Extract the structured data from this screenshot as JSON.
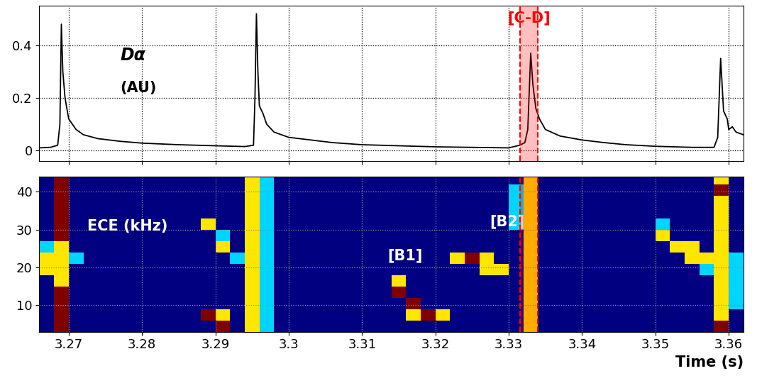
{
  "chart_data": [
    {
      "type": "line",
      "x": [
        3.266,
        3.2675,
        3.2685,
        3.2688,
        3.269,
        3.2692,
        3.2695,
        3.27,
        3.271,
        3.272,
        3.274,
        3.277,
        3.28,
        3.285,
        3.29,
        3.294,
        3.2952,
        3.2954,
        3.2956,
        3.2958,
        3.296,
        3.2965,
        3.297,
        3.298,
        3.3,
        3.303,
        3.306,
        3.31,
        3.315,
        3.32,
        3.325,
        3.33,
        3.3315,
        3.3322,
        3.3326,
        3.333,
        3.3333,
        3.3337,
        3.3342,
        3.335,
        3.337,
        3.34,
        3.343,
        3.346,
        3.35,
        3.355,
        3.358,
        3.3585,
        3.3589,
        3.3593,
        3.3598,
        3.36,
        3.3605,
        3.361,
        3.362
      ],
      "values": [
        0.01,
        0.012,
        0.02,
        0.1,
        0.48,
        0.3,
        0.2,
        0.12,
        0.08,
        0.06,
        0.045,
        0.035,
        0.028,
        0.022,
        0.018,
        0.015,
        0.02,
        0.2,
        0.52,
        0.3,
        0.17,
        0.14,
        0.1,
        0.07,
        0.05,
        0.04,
        0.03,
        0.022,
        0.018,
        0.014,
        0.012,
        0.01,
        0.02,
        0.03,
        0.08,
        0.37,
        0.25,
        0.16,
        0.12,
        0.08,
        0.055,
        0.04,
        0.03,
        0.022,
        0.016,
        0.012,
        0.012,
        0.05,
        0.35,
        0.15,
        0.12,
        0.08,
        0.09,
        0.07,
        0.06
      ],
      "color": "black",
      "xlim": [
        3.266,
        3.362
      ],
      "xticks": [
        3.27,
        3.28,
        3.29,
        3.3,
        3.31,
        3.32,
        3.33,
        3.34,
        3.35,
        3.36
      ],
      "ylim": [
        -0.04,
        0.55
      ],
      "yticks": [
        0,
        0.2,
        0.4
      ],
      "tick_labels": "y",
      "grid": true,
      "annotations": [
        "Dα",
        "(AU)"
      ]
    },
    {
      "type": "heatmap",
      "x_edges": [
        3.266,
        3.268,
        3.27,
        3.272,
        3.274,
        3.276,
        3.278,
        3.28,
        3.282,
        3.284,
        3.286,
        3.288,
        3.29,
        3.292,
        3.294,
        3.296,
        3.298,
        3.3,
        3.302,
        3.304,
        3.306,
        3.308,
        3.31,
        3.312,
        3.314,
        3.316,
        3.318,
        3.32,
        3.322,
        3.324,
        3.326,
        3.328,
        3.33,
        3.332,
        3.334,
        3.336,
        3.338,
        3.34,
        3.342,
        3.344,
        3.346,
        3.348,
        3.35,
        3.352,
        3.354,
        3.356,
        3.358,
        3.36,
        3.362
      ],
      "y_edges": [
        3,
        6,
        9,
        12,
        15,
        18,
        21,
        24,
        27,
        30,
        33,
        36,
        39,
        42,
        45
      ],
      "cells": [
        [
          0,
          3,
          0,
          0,
          0,
          0,
          0,
          0,
          0,
          0,
          0,
          0,
          3,
          0,
          2,
          1,
          0,
          0,
          0,
          0,
          0,
          0,
          0,
          0,
          0,
          0,
          0,
          0,
          0,
          0,
          0,
          0,
          0,
          2,
          0,
          0,
          0,
          0,
          0,
          0,
          0,
          0,
          0,
          0,
          0,
          0,
          3,
          0
        ],
        [
          0,
          3,
          0,
          0,
          0,
          0,
          0,
          0,
          0,
          0,
          0,
          3,
          2,
          0,
          2,
          1,
          0,
          0,
          0,
          0,
          0,
          0,
          0,
          0,
          0,
          2,
          3,
          2,
          0,
          0,
          0,
          0,
          0,
          2,
          0,
          0,
          0,
          0,
          0,
          0,
          0,
          0,
          0,
          0,
          0,
          0,
          2,
          0
        ],
        [
          0,
          3,
          0,
          0,
          0,
          0,
          0,
          0,
          0,
          0,
          0,
          0,
          0,
          0,
          2,
          1,
          0,
          0,
          0,
          0,
          0,
          0,
          0,
          0,
          0,
          3,
          0,
          0,
          0,
          0,
          0,
          0,
          0,
          2,
          0,
          0,
          0,
          0,
          0,
          0,
          0,
          0,
          0,
          0,
          0,
          0,
          2,
          1
        ],
        [
          0,
          3,
          0,
          0,
          0,
          0,
          0,
          0,
          0,
          0,
          0,
          0,
          0,
          0,
          2,
          1,
          0,
          0,
          0,
          0,
          0,
          0,
          0,
          0,
          3,
          0,
          0,
          0,
          0,
          0,
          0,
          0,
          0,
          2,
          0,
          0,
          0,
          0,
          0,
          0,
          0,
          0,
          0,
          0,
          0,
          0,
          2,
          1
        ],
        [
          0,
          2,
          0,
          0,
          0,
          0,
          0,
          0,
          0,
          0,
          0,
          0,
          0,
          0,
          2,
          1,
          0,
          0,
          0,
          0,
          0,
          0,
          0,
          0,
          2,
          0,
          0,
          0,
          0,
          0,
          0,
          0,
          0,
          2,
          0,
          0,
          0,
          0,
          0,
          0,
          0,
          0,
          0,
          0,
          0,
          0,
          2,
          1
        ],
        [
          2,
          2,
          0,
          0,
          0,
          0,
          0,
          0,
          0,
          0,
          0,
          0,
          0,
          0,
          2,
          1,
          0,
          0,
          0,
          0,
          0,
          0,
          0,
          0,
          0,
          0,
          0,
          0,
          0,
          0,
          2,
          2,
          0,
          2,
          0,
          0,
          0,
          0,
          0,
          0,
          0,
          0,
          0,
          0,
          0,
          1,
          2,
          1
        ],
        [
          2,
          2,
          1,
          0,
          0,
          0,
          0,
          0,
          0,
          0,
          0,
          0,
          0,
          1,
          2,
          1,
          0,
          0,
          0,
          0,
          0,
          0,
          0,
          0,
          0,
          0,
          0,
          0,
          2,
          3,
          2,
          0,
          0,
          2,
          0,
          0,
          0,
          0,
          0,
          0,
          0,
          0,
          0,
          0,
          2,
          2,
          2,
          1
        ],
        [
          1,
          2,
          0,
          0,
          0,
          0,
          0,
          0,
          0,
          0,
          0,
          0,
          2,
          0,
          2,
          1,
          0,
          0,
          0,
          0,
          0,
          0,
          0,
          0,
          0,
          0,
          0,
          0,
          0,
          0,
          0,
          0,
          0,
          2,
          0,
          0,
          0,
          0,
          0,
          0,
          0,
          0,
          0,
          2,
          2,
          0,
          2,
          0
        ],
        [
          0,
          3,
          0,
          0,
          0,
          0,
          0,
          0,
          0,
          0,
          0,
          0,
          1,
          0,
          2,
          1,
          0,
          0,
          0,
          0,
          0,
          0,
          0,
          0,
          0,
          0,
          0,
          0,
          0,
          0,
          0,
          0,
          0,
          2,
          0,
          0,
          0,
          0,
          0,
          0,
          0,
          0,
          2,
          0,
          0,
          0,
          2,
          0
        ],
        [
          0,
          3,
          0,
          0,
          0,
          0,
          0,
          0,
          0,
          0,
          0,
          2,
          0,
          0,
          2,
          1,
          0,
          0,
          0,
          0,
          0,
          0,
          0,
          0,
          0,
          0,
          0,
          0,
          0,
          0,
          0,
          0,
          1,
          2,
          0,
          0,
          0,
          0,
          0,
          0,
          0,
          0,
          1,
          0,
          0,
          0,
          2,
          0
        ],
        [
          0,
          3,
          0,
          0,
          0,
          0,
          0,
          0,
          0,
          0,
          0,
          0,
          0,
          0,
          2,
          1,
          0,
          0,
          0,
          0,
          0,
          0,
          0,
          0,
          0,
          0,
          0,
          0,
          0,
          0,
          0,
          0,
          1,
          2,
          0,
          0,
          0,
          0,
          0,
          0,
          0,
          0,
          0,
          0,
          0,
          0,
          2,
          0
        ],
        [
          0,
          3,
          0,
          0,
          0,
          0,
          0,
          0,
          0,
          0,
          0,
          0,
          0,
          0,
          2,
          1,
          0,
          0,
          0,
          0,
          0,
          0,
          0,
          0,
          0,
          0,
          0,
          0,
          0,
          0,
          0,
          0,
          1,
          2,
          0,
          0,
          0,
          0,
          0,
          0,
          0,
          0,
          0,
          0,
          0,
          0,
          2,
          0
        ],
        [
          0,
          3,
          0,
          0,
          0,
          0,
          0,
          0,
          0,
          0,
          0,
          0,
          0,
          0,
          2,
          1,
          0,
          0,
          0,
          0,
          0,
          0,
          0,
          0,
          0,
          0,
          0,
          0,
          0,
          0,
          0,
          0,
          1,
          2,
          0,
          0,
          0,
          0,
          0,
          0,
          0,
          0,
          0,
          0,
          0,
          0,
          3,
          0
        ],
        [
          0,
          3,
          0,
          0,
          0,
          0,
          0,
          0,
          0,
          0,
          0,
          0,
          0,
          0,
          2,
          1,
          0,
          0,
          0,
          0,
          0,
          0,
          0,
          0,
          0,
          0,
          0,
          0,
          0,
          0,
          0,
          0,
          0,
          2,
          0,
          0,
          0,
          0,
          0,
          0,
          0,
          0,
          0,
          0,
          0,
          0,
          2,
          0
        ]
      ],
      "value_range": [
        0,
        3
      ],
      "xlim": [
        3.266,
        3.362
      ],
      "xticks": [
        3.27,
        3.28,
        3.29,
        3.3,
        3.31,
        3.32,
        3.33,
        3.34,
        3.35,
        3.36
      ],
      "ylim": [
        3,
        44
      ],
      "yticks": [
        10,
        20,
        30,
        40
      ],
      "xlabel": "Time (s)",
      "grid": true,
      "annotations": [
        "ECE (kHz)",
        "[B1]",
        "[B2]"
      ]
    }
  ],
  "highlight": {
    "x": [
      3.3315,
      3.334
    ],
    "label": "[C-D]",
    "color": "red"
  }
}
